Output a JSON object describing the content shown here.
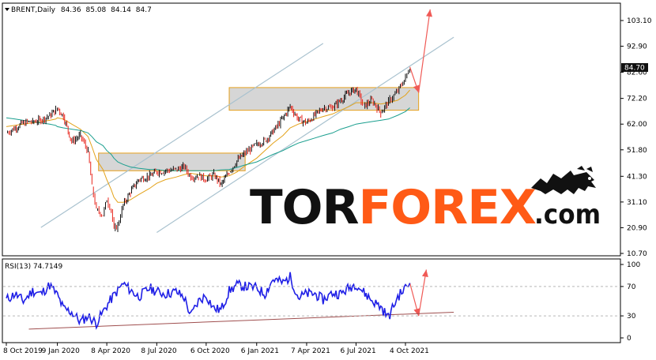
{
  "chart_data": [
    {
      "type": "line",
      "panel": "price",
      "symbol": "BRENT,Daily",
      "ohlc": {
        "open": 84.36,
        "high": 85.08,
        "low": 84.14,
        "close": 84.7
      },
      "last_price_label": "84.70",
      "y_ticks": [
        "103.10",
        "92.90",
        "82.60",
        "72.20",
        "62.00",
        "51.80",
        "41.30",
        "31.10",
        "20.90",
        "10.70"
      ],
      "x_ticks": [
        "8 Oct 2019",
        "9 Jan 2020",
        "8 Apr 2020",
        "8 Jul 2020",
        "6 Oct 2020",
        "6 Jan 2021",
        "7 Apr 2021",
        "6 Jul 2021",
        "4 Oct 2021"
      ],
      "x": [
        "2019-10-08",
        "2019-10-24",
        "2019-11-08",
        "2019-11-25",
        "2019-12-10",
        "2019-12-26",
        "2020-01-06",
        "2020-01-09",
        "2020-01-20",
        "2020-02-04",
        "2020-02-20",
        "2020-03-05",
        "2020-03-12",
        "2020-03-20",
        "2020-04-01",
        "2020-04-08",
        "2020-04-16",
        "2020-04-21",
        "2020-04-28",
        "2020-05-08",
        "2020-05-21",
        "2020-06-05",
        "2020-06-25",
        "2020-07-08",
        "2020-07-24",
        "2020-08-12",
        "2020-08-27",
        "2020-09-08",
        "2020-09-22",
        "2020-10-06",
        "2020-10-20",
        "2020-11-02",
        "2020-11-17",
        "2020-12-01",
        "2020-12-16",
        "2021-01-06",
        "2021-01-21",
        "2021-02-05",
        "2021-02-23",
        "2021-03-08",
        "2021-03-23",
        "2021-04-07",
        "2021-04-22",
        "2021-05-07",
        "2021-05-24",
        "2021-06-08",
        "2021-06-23",
        "2021-07-06",
        "2021-07-20",
        "2021-08-04",
        "2021-08-20",
        "2021-09-03",
        "2021-09-20",
        "2021-10-04",
        "2021-10-12"
      ],
      "close": [
        58.5,
        60.5,
        62.5,
        63.0,
        63.5,
        65.5,
        67.5,
        68.5,
        65.0,
        55.0,
        57.5,
        51.0,
        37.0,
        28.0,
        26.0,
        32.0,
        28.0,
        20.0,
        22.0,
        30.0,
        35.0,
        40.0,
        41.5,
        43.0,
        43.5,
        44.0,
        45.0,
        41.0,
        41.5,
        40.0,
        42.0,
        38.0,
        43.0,
        47.5,
        50.5,
        54.0,
        55.5,
        59.0,
        64.5,
        69.0,
        64.0,
        62.5,
        65.5,
        68.5,
        68.5,
        71.5,
        74.5,
        76.0,
        69.0,
        71.5,
        66.5,
        71.0,
        75.0,
        80.5,
        84.7
      ],
      "series": [
        {
          "name": "",
          "role": "moving_average",
          "color": "#e3a21a",
          "values": [
            61.0,
            61.5,
            62.0,
            62.5,
            63.0,
            63.5,
            64.0,
            64.5,
            64.0,
            62.0,
            60.0,
            57.0,
            53.0,
            48.0,
            44.0,
            40.0,
            36.0,
            33.0,
            31.0,
            31.0,
            32.0,
            34.0,
            36.5,
            38.5,
            40.0,
            41.0,
            42.0,
            42.5,
            42.0,
            41.5,
            41.5,
            41.0,
            41.5,
            43.0,
            45.5,
            48.5,
            51.5,
            54.5,
            57.5,
            60.5,
            62.0,
            63.0,
            64.0,
            65.0,
            66.0,
            67.5,
            69.0,
            70.5,
            70.5,
            70.5,
            70.0,
            70.5,
            71.5,
            73.5,
            75.5
          ]
        },
        {
          "name": "",
          "role": "moving_average",
          "color": "#1b9f8f",
          "values": [
            64.5,
            64.0,
            63.5,
            63.0,
            62.5,
            62.0,
            61.5,
            61.0,
            60.5,
            60.0,
            59.5,
            58.5,
            57.0,
            55.0,
            53.5,
            51.5,
            50.0,
            48.5,
            47.0,
            46.0,
            45.0,
            44.5,
            44.0,
            44.0,
            43.5,
            43.5,
            43.5,
            43.5,
            43.5,
            43.5,
            43.5,
            43.8,
            44.0,
            44.8,
            45.8,
            47.0,
            48.5,
            50.0,
            51.5,
            53.0,
            54.5,
            55.5,
            56.5,
            57.5,
            58.5,
            60.0,
            61.0,
            62.0,
            62.5,
            63.0,
            63.5,
            64.0,
            65.5,
            67.0,
            68.5
          ]
        }
      ],
      "trend_channel": [
        {
          "from": [
            "2019-12-10",
            21.0
          ],
          "to": [
            "2021-05-07",
            94.0
          ]
        },
        {
          "from": [
            "2020-07-08",
            19.0
          ],
          "to": [
            "2021-12-31",
            96.5
          ]
        }
      ],
      "zones": [
        {
          "x_from": "2020-03-24",
          "x_to": "2020-12-16",
          "y_from": 43.5,
          "y_to": 50.5
        },
        {
          "x_from": "2020-11-17",
          "x_to": "2021-10-28",
          "y_from": 67.5,
          "y_to": 76.5
        }
      ],
      "forecast_arrows": [
        {
          "from": [
            "2021-10-12",
            84.7
          ],
          "to": [
            "2021-10-28",
            74.5
          ]
        },
        {
          "from": [
            "2021-10-28",
            74.5
          ],
          "to": [
            "2021-11-18",
            107.5
          ]
        }
      ]
    },
    {
      "type": "line",
      "panel": "indicator",
      "label": "RSI(13) 74.7149",
      "y_ticks": [
        "100",
        "70",
        "30",
        "0"
      ],
      "levels": [
        70,
        30
      ],
      "x": [
        "2019-10-08",
        "2019-10-24",
        "2019-11-08",
        "2019-11-25",
        "2019-12-10",
        "2019-12-26",
        "2020-01-09",
        "2020-01-20",
        "2020-02-04",
        "2020-02-20",
        "2020-03-05",
        "2020-03-20",
        "2020-04-08",
        "2020-04-21",
        "2020-05-08",
        "2020-05-21",
        "2020-06-05",
        "2020-06-25",
        "2020-07-08",
        "2020-07-24",
        "2020-08-12",
        "2020-08-27",
        "2020-09-08",
        "2020-09-22",
        "2020-10-06",
        "2020-10-20",
        "2020-11-02",
        "2020-11-17",
        "2020-12-01",
        "2020-12-16",
        "2021-01-06",
        "2021-01-21",
        "2021-02-05",
        "2021-02-23",
        "2021-03-08",
        "2021-03-23",
        "2021-04-07",
        "2021-04-22",
        "2021-05-07",
        "2021-05-24",
        "2021-06-08",
        "2021-06-23",
        "2021-07-06",
        "2021-07-20",
        "2021-08-04",
        "2021-08-20",
        "2021-09-03",
        "2021-09-20",
        "2021-10-04",
        "2021-10-12"
      ],
      "values": [
        52,
        60,
        50,
        64,
        60,
        72,
        58,
        40,
        35,
        22,
        30,
        20,
        44,
        58,
        74,
        65,
        56,
        68,
        63,
        60,
        63,
        55,
        30,
        50,
        58,
        40,
        38,
        64,
        72,
        70,
        68,
        60,
        80,
        75,
        83,
        55,
        60,
        60,
        52,
        61,
        60,
        68,
        74,
        62,
        51,
        42,
        28,
        56,
        68,
        74.7
      ],
      "support_line": {
        "from": [
          "2019-11-18",
          12
        ],
        "to": [
          "2021-12-31",
          35
        ]
      },
      "forecast_arrows": [
        {
          "from": [
            "2021-10-12",
            74.7
          ],
          "to": [
            "2021-10-28",
            30
          ]
        },
        {
          "from": [
            "2021-10-28",
            30
          ],
          "to": [
            "2021-11-11",
            93
          ]
        }
      ]
    }
  ],
  "watermark": {
    "part1": "TOR",
    "part2": "FOREX",
    "part3": ".com",
    "colors": {
      "dark": "#111111",
      "accent": "#ff5a16"
    }
  },
  "colors": {
    "candle_up": "#111111",
    "candle_down": "#e8261d",
    "rsi": "#1f1fe6",
    "arrow": "#f05a56",
    "channel": "#a9c2cf",
    "zone_fill": "#d6d6d6",
    "zone_border": "#e6a01b",
    "support": "#9f4e4e",
    "last_price_bg": "#111111"
  }
}
